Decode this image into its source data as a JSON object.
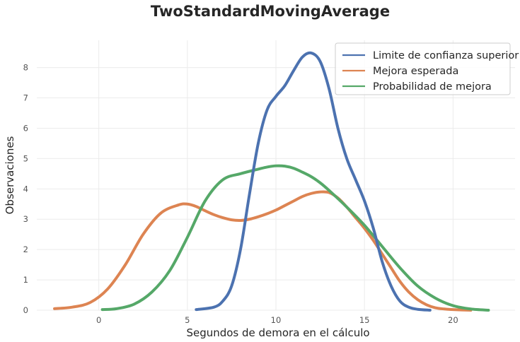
{
  "chart_data": {
    "type": "line",
    "title": "TwoStandardMovingAverage",
    "xlabel": "Segundos de demora en el cálculo",
    "ylabel": "Observaciones",
    "xlim": [
      -3.5,
      23.5
    ],
    "ylim": [
      0,
      8.9
    ],
    "xticks": [
      0,
      5,
      10,
      15,
      20
    ],
    "yticks": [
      0,
      1,
      2,
      3,
      4,
      5,
      6,
      7,
      8
    ],
    "grid": true,
    "legend_position": "top-right",
    "series": [
      {
        "name": "Limite de confianza superior",
        "color": "#4c72b0",
        "x": [
          5.5,
          6.5,
          7.0,
          7.5,
          8.0,
          8.5,
          9.0,
          9.5,
          10.0,
          10.5,
          11.0,
          11.5,
          12.0,
          12.5,
          13.0,
          13.5,
          14.0,
          14.5,
          15.0,
          15.5,
          16.0,
          16.5,
          17.0,
          17.5,
          18.0,
          18.7
        ],
        "y": [
          0.02,
          0.1,
          0.3,
          0.8,
          2.0,
          3.8,
          5.5,
          6.6,
          7.05,
          7.4,
          7.9,
          8.35,
          8.48,
          8.2,
          7.3,
          6.0,
          5.0,
          4.3,
          3.6,
          2.7,
          1.6,
          0.8,
          0.3,
          0.1,
          0.03,
          0.0
        ]
      },
      {
        "name": "Mejora esperada",
        "color": "#dd8452",
        "x": [
          -2.5,
          -1.5,
          -0.5,
          0.5,
          1.5,
          2.5,
          3.5,
          4.5,
          5.0,
          5.5,
          6.0,
          6.5,
          7.0,
          7.5,
          8.0,
          8.5,
          9.0,
          9.5,
          10.0,
          10.5,
          11.0,
          11.5,
          12.0,
          12.5,
          13.0,
          13.5,
          14.0,
          14.5,
          15.0,
          15.5,
          16.0,
          16.5,
          17.0,
          17.5,
          18.0,
          18.5,
          19.0,
          19.5,
          20.0,
          21.0
        ],
        "y": [
          0.05,
          0.1,
          0.25,
          0.7,
          1.5,
          2.5,
          3.2,
          3.47,
          3.5,
          3.42,
          3.28,
          3.15,
          3.05,
          2.98,
          2.96,
          3.0,
          3.08,
          3.18,
          3.3,
          3.45,
          3.6,
          3.75,
          3.85,
          3.9,
          3.88,
          3.7,
          3.4,
          3.05,
          2.7,
          2.3,
          1.85,
          1.4,
          0.95,
          0.6,
          0.35,
          0.18,
          0.08,
          0.04,
          0.02,
          0.0
        ]
      },
      {
        "name": "Probabilidad de mejora",
        "color": "#55a868",
        "x": [
          0.2,
          1.0,
          2.0,
          3.0,
          4.0,
          5.0,
          6.0,
          7.0,
          8.0,
          9.0,
          9.5,
          10.0,
          10.5,
          11.0,
          11.5,
          12.0,
          12.5,
          13.0,
          14.0,
          15.0,
          16.0,
          17.0,
          18.0,
          19.0,
          20.0,
          21.0,
          22.0
        ],
        "y": [
          0.02,
          0.05,
          0.2,
          0.6,
          1.3,
          2.4,
          3.6,
          4.3,
          4.5,
          4.65,
          4.72,
          4.76,
          4.75,
          4.68,
          4.55,
          4.4,
          4.2,
          3.95,
          3.4,
          2.8,
          2.1,
          1.4,
          0.8,
          0.4,
          0.15,
          0.04,
          0.0
        ]
      }
    ]
  }
}
